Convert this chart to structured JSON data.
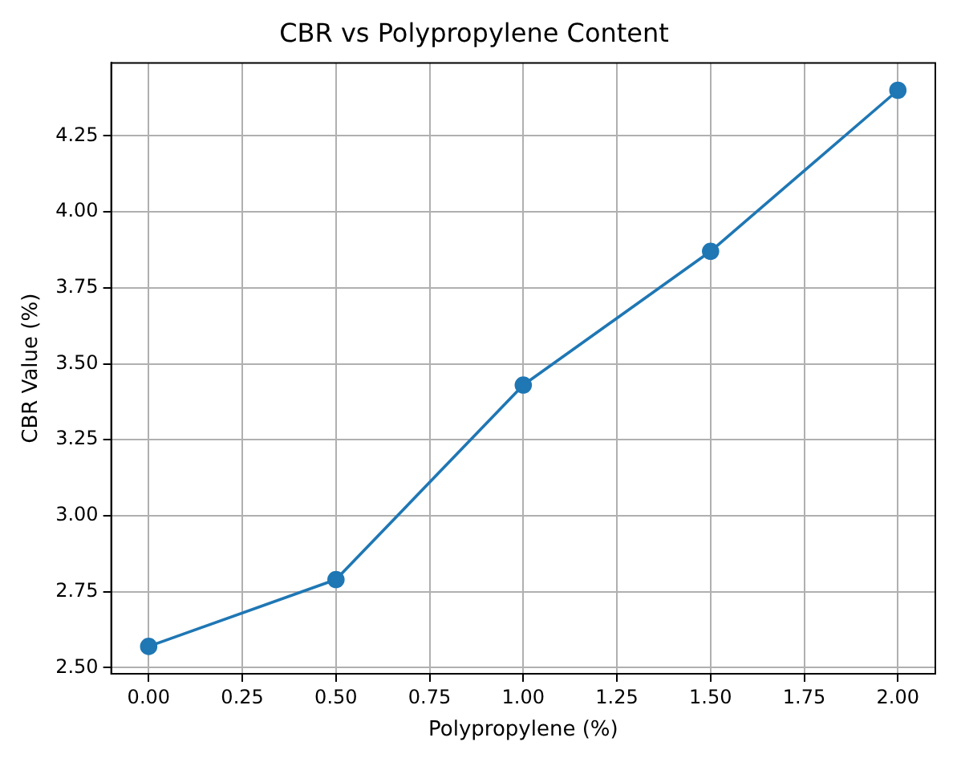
{
  "chart_data": {
    "type": "line",
    "title": "CBR vs Polypropylene Content",
    "xlabel": "Polypropylene (%)",
    "ylabel": "CBR Value (%)",
    "x": [
      0,
      0.5,
      1,
      1.5,
      2
    ],
    "series": [
      {
        "color": "#1f77b4",
        "values": [
          2.57,
          2.79,
          3.43,
          3.87,
          4.4
        ]
      }
    ],
    "xlim": [
      -0.1,
      2.1
    ],
    "xticks": [
      {
        "value": 0,
        "label": "0.00"
      },
      {
        "value": 0.25,
        "label": "0.25"
      },
      {
        "value": 0.5,
        "label": "0.50"
      },
      {
        "value": 0.75,
        "label": "0.75"
      },
      {
        "value": 1,
        "label": "1.00"
      },
      {
        "value": 1.25,
        "label": "1.25"
      },
      {
        "value": 1.5,
        "label": "1.50"
      },
      {
        "value": 1.75,
        "label": "1.75"
      },
      {
        "value": 2,
        "label": "2.00"
      }
    ],
    "ylim": [
      2.48,
      4.49
    ],
    "yticks": [
      {
        "value": 2.5,
        "label": "2.50"
      },
      {
        "value": 2.75,
        "label": "2.75"
      },
      {
        "value": 3,
        "label": "3.00"
      },
      {
        "value": 3.25,
        "label": "3.25"
      },
      {
        "value": 3.5,
        "label": "3.50"
      },
      {
        "value": 3.75,
        "label": "3.75"
      },
      {
        "value": 4,
        "label": "4.00"
      },
      {
        "value": 4.25,
        "label": "4.25"
      }
    ],
    "grid": true,
    "marker": "circle",
    "line_style": "solid"
  }
}
